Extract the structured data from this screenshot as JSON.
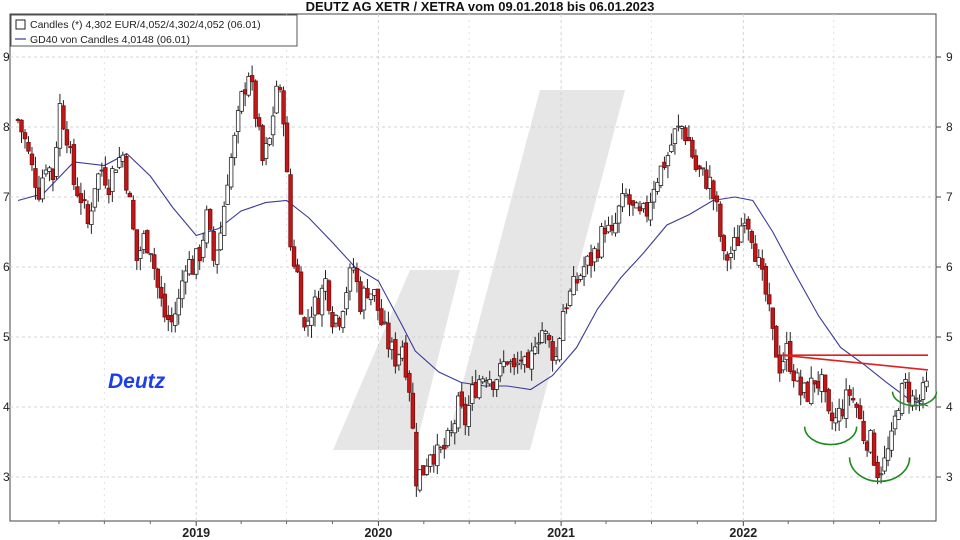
{
  "chart_data": {
    "type": "candlestick",
    "title": "DEUTZ AG XETR / XETRA vom 09.01.2018 bis 06.01.2023",
    "legend": [
      {
        "name": "Candles",
        "text": "Candles (*) 4,302 EUR/4,052/4,302/4,052 (06.01)"
      },
      {
        "name": "GD40",
        "text": "GD40 von Candles 4,0148 (06.01)"
      }
    ],
    "annotation": "Deutz",
    "y_ticks": [
      "3",
      "4",
      "5",
      "6",
      "7",
      "8",
      "9"
    ],
    "x_ticks": [
      "2019",
      "2020",
      "2021",
      "2022"
    ],
    "ylim": [
      2.6,
      9.15
    ],
    "x_range": [
      "2018-01-09",
      "2023-01-06"
    ],
    "grid": true,
    "price_path": [
      [
        "2018-01-09",
        8.1
      ],
      [
        "2018-01-23",
        7.8
      ],
      [
        "2018-02-06",
        7.4
      ],
      [
        "2018-02-20",
        7.1
      ],
      [
        "2018-03-06",
        7.5
      ],
      [
        "2018-03-20",
        7.3
      ],
      [
        "2018-04-03",
        8.3
      ],
      [
        "2018-04-17",
        7.9
      ],
      [
        "2018-05-01",
        7.2
      ],
      [
        "2018-05-15",
        7.0
      ],
      [
        "2018-05-29",
        6.6
      ],
      [
        "2018-06-12",
        7.2
      ],
      [
        "2018-06-26",
        7.4
      ],
      [
        "2018-07-10",
        7.2
      ],
      [
        "2018-07-24",
        7.5
      ],
      [
        "2018-08-07",
        7.6
      ],
      [
        "2018-08-21",
        6.9
      ],
      [
        "2018-09-04",
        6.1
      ],
      [
        "2018-09-18",
        6.4
      ],
      [
        "2018-10-02",
        6.3
      ],
      [
        "2018-10-16",
        5.7
      ],
      [
        "2018-10-30",
        5.3
      ],
      [
        "2018-11-13",
        5.2
      ],
      [
        "2018-11-27",
        5.5
      ],
      [
        "2018-12-11",
        6.1
      ],
      [
        "2018-12-25",
        6.0
      ],
      [
        "2019-01-08",
        6.2
      ],
      [
        "2019-01-22",
        6.7
      ],
      [
        "2019-02-05",
        6.1
      ],
      [
        "2019-02-19",
        6.5
      ],
      [
        "2019-03-05",
        7.3
      ],
      [
        "2019-03-19",
        7.8
      ],
      [
        "2019-04-02",
        8.4
      ],
      [
        "2019-04-16",
        8.8
      ],
      [
        "2019-04-30",
        8.2
      ],
      [
        "2019-05-14",
        7.5
      ],
      [
        "2019-05-28",
        7.8
      ],
      [
        "2019-06-11",
        8.6
      ],
      [
        "2019-06-25",
        8.2
      ],
      [
        "2019-07-09",
        6.3
      ],
      [
        "2019-07-23",
        5.9
      ],
      [
        "2019-08-06",
        5.1
      ],
      [
        "2019-08-20",
        5.4
      ],
      [
        "2019-09-03",
        5.5
      ],
      [
        "2019-09-17",
        5.8
      ],
      [
        "2019-10-01",
        5.3
      ],
      [
        "2019-10-15",
        5.3
      ],
      [
        "2019-10-29",
        5.7
      ],
      [
        "2019-11-12",
        6.0
      ],
      [
        "2019-11-26",
        5.5
      ],
      [
        "2019-12-10",
        5.7
      ],
      [
        "2019-12-24",
        5.6
      ],
      [
        "2020-01-07",
        5.2
      ],
      [
        "2020-01-21",
        4.9
      ],
      [
        "2020-02-04",
        4.7
      ],
      [
        "2020-02-18",
        4.9
      ],
      [
        "2020-03-03",
        4.3
      ],
      [
        "2020-03-17",
        3.0
      ],
      [
        "2020-03-31",
        3.1
      ],
      [
        "2020-04-14",
        3.4
      ],
      [
        "2020-04-28",
        3.3
      ],
      [
        "2020-05-12",
        3.4
      ],
      [
        "2020-05-26",
        3.6
      ],
      [
        "2020-06-09",
        4.0
      ],
      [
        "2020-06-23",
        3.8
      ],
      [
        "2020-07-07",
        4.2
      ],
      [
        "2020-07-21",
        4.4
      ],
      [
        "2020-08-04",
        4.5
      ],
      [
        "2020-08-18",
        4.4
      ],
      [
        "2020-09-01",
        4.5
      ],
      [
        "2020-09-15",
        4.7
      ],
      [
        "2020-09-29",
        4.5
      ],
      [
        "2020-10-13",
        4.7
      ],
      [
        "2020-10-27",
        4.4
      ],
      [
        "2020-11-10",
        5.0
      ],
      [
        "2020-11-24",
        5.1
      ],
      [
        "2020-12-08",
        4.9
      ],
      [
        "2020-12-22",
        4.7
      ],
      [
        "2021-01-05",
        5.4
      ],
      [
        "2021-01-19",
        5.6
      ],
      [
        "2021-02-02",
        5.8
      ],
      [
        "2021-02-16",
        6.0
      ],
      [
        "2021-03-02",
        6.1
      ],
      [
        "2021-03-16",
        6.3
      ],
      [
        "2021-03-30",
        6.6
      ],
      [
        "2021-04-13",
        6.4
      ],
      [
        "2021-04-27",
        6.8
      ],
      [
        "2021-05-11",
        7.0
      ],
      [
        "2021-05-25",
        6.8
      ],
      [
        "2021-06-08",
        6.7
      ],
      [
        "2021-06-22",
        6.8
      ],
      [
        "2021-07-06",
        7.2
      ],
      [
        "2021-07-20",
        7.4
      ],
      [
        "2021-08-03",
        7.6
      ],
      [
        "2021-08-17",
        7.9
      ],
      [
        "2021-08-31",
        8.0
      ],
      [
        "2021-09-14",
        7.8
      ],
      [
        "2021-09-28",
        7.4
      ],
      [
        "2021-10-12",
        7.3
      ],
      [
        "2021-10-26",
        7.2
      ],
      [
        "2021-11-09",
        6.8
      ],
      [
        "2021-11-23",
        6.1
      ],
      [
        "2021-12-07",
        6.2
      ],
      [
        "2021-12-21",
        6.4
      ],
      [
        "2022-01-04",
        6.8
      ],
      [
        "2022-01-18",
        6.5
      ],
      [
        "2022-02-01",
        6.0
      ],
      [
        "2022-02-15",
        5.6
      ],
      [
        "2022-03-01",
        5.0
      ],
      [
        "2022-03-15",
        4.6
      ],
      [
        "2022-03-29",
        4.8
      ],
      [
        "2022-04-12",
        4.5
      ],
      [
        "2022-04-26",
        4.2
      ],
      [
        "2022-05-10",
        4.2
      ],
      [
        "2022-05-24",
        4.4
      ],
      [
        "2022-06-07",
        4.3
      ],
      [
        "2022-06-21",
        3.8
      ],
      [
        "2022-07-05",
        3.8
      ],
      [
        "2022-07-19",
        4.0
      ],
      [
        "2022-08-02",
        4.2
      ],
      [
        "2022-08-16",
        4.0
      ],
      [
        "2022-08-30",
        3.6
      ],
      [
        "2022-09-13",
        3.5
      ],
      [
        "2022-09-27",
        3.1
      ],
      [
        "2022-10-11",
        3.2
      ],
      [
        "2022-10-25",
        3.5
      ],
      [
        "2022-11-08",
        4.1
      ],
      [
        "2022-11-22",
        4.3
      ],
      [
        "2022-12-06",
        4.1
      ],
      [
        "2022-12-20",
        4.1
      ],
      [
        "2023-01-06",
        4.302
      ]
    ],
    "gd40_path": [
      [
        "2018-01-09",
        6.95
      ],
      [
        "2018-03-01",
        7.05
      ],
      [
        "2018-05-01",
        7.5
      ],
      [
        "2018-07-01",
        7.45
      ],
      [
        "2018-08-15",
        7.62
      ],
      [
        "2018-10-01",
        7.3
      ],
      [
        "2018-11-15",
        6.85
      ],
      [
        "2019-01-01",
        6.45
      ],
      [
        "2019-02-15",
        6.55
      ],
      [
        "2019-04-01",
        6.8
      ],
      [
        "2019-05-20",
        6.92
      ],
      [
        "2019-07-01",
        6.95
      ],
      [
        "2019-08-15",
        6.7
      ],
      [
        "2019-10-01",
        6.35
      ],
      [
        "2019-11-15",
        6.0
      ],
      [
        "2020-01-01",
        5.8
      ],
      [
        "2020-02-15",
        5.2
      ],
      [
        "2020-03-15",
        4.8
      ],
      [
        "2020-05-01",
        4.5
      ],
      [
        "2020-06-15",
        4.35
      ],
      [
        "2020-08-01",
        4.3
      ],
      [
        "2020-09-15",
        4.3
      ],
      [
        "2020-11-01",
        4.25
      ],
      [
        "2020-12-15",
        4.45
      ],
      [
        "2021-02-01",
        4.85
      ],
      [
        "2021-03-15",
        5.4
      ],
      [
        "2021-05-01",
        5.85
      ],
      [
        "2021-06-15",
        6.2
      ],
      [
        "2021-08-01",
        6.6
      ],
      [
        "2021-09-15",
        6.75
      ],
      [
        "2021-11-01",
        6.95
      ],
      [
        "2021-12-15",
        7.0
      ],
      [
        "2022-01-20",
        6.95
      ],
      [
        "2022-03-01",
        6.5
      ],
      [
        "2022-04-15",
        5.9
      ],
      [
        "2022-06-01",
        5.3
      ],
      [
        "2022-07-15",
        4.85
      ],
      [
        "2022-09-01",
        4.6
      ],
      [
        "2022-10-15",
        4.35
      ],
      [
        "2022-12-01",
        4.1
      ],
      [
        "2023-01-06",
        4.0148
      ]
    ],
    "resistance_lines": [
      {
        "start": [
          "2022-03-20",
          4.74
        ],
        "end": [
          "2023-01-06",
          4.74
        ],
        "color": "#e02020"
      },
      {
        "start": [
          "2022-03-20",
          4.74
        ],
        "end": [
          "2023-01-06",
          4.53
        ],
        "color": "#e02020"
      }
    ],
    "pattern_arcs": [
      {
        "center": [
          "2022-06-25",
          3.72
        ],
        "color": "#1f8a1f"
      },
      {
        "center": [
          "2022-10-01",
          3.28
        ],
        "color": "#1f8a1f"
      },
      {
        "center": [
          "2022-12-10",
          4.22
        ],
        "color": "#1f8a1f"
      }
    ],
    "colors": {
      "up": "#ffffff",
      "down": "#c01818",
      "gd40": "#3a3a9a",
      "watermark": "#e4e4e4"
    }
  }
}
